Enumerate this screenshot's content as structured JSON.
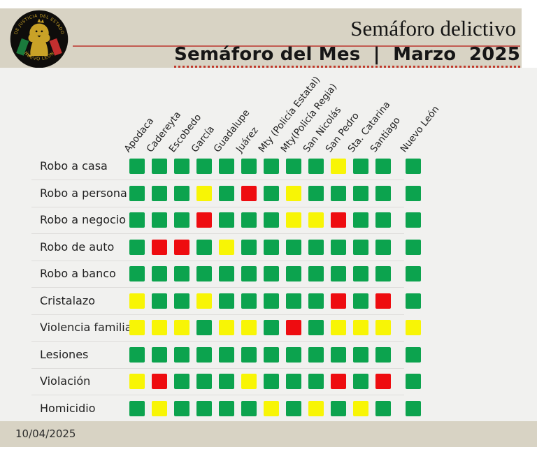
{
  "header": {
    "title": "Semáforo delictivo",
    "subtitle": "Semáforo del Mes  |  Marzo  2025",
    "logo": {
      "arc_top": "DE JUSTICIA DEL ESTADO",
      "arc_bottom": "NUEVO LEÓN"
    }
  },
  "footer": {
    "date": "10/04/2025"
  },
  "colors": {
    "green": "#0ca34e",
    "yellow": "#f8f505",
    "red": "#ee0c10",
    "band": "#d8d3c4",
    "accent_line": "#c25b52"
  },
  "chart_data": {
    "type": "heatmap",
    "title": "Semáforo del Mes | Marzo 2025",
    "value_legend": [
      "green",
      "yellow",
      "red"
    ],
    "columns": [
      "Apodaca",
      "Cadereyta",
      "Escobedo",
      "García",
      "Guadalupe",
      "Juárez",
      "Mty (Policía Estatal)",
      "Mty(Policía Regia)",
      "San Nicolás",
      "San Pedro",
      "Sta. Catarina",
      "Santiago",
      "Nuevo León"
    ],
    "rows": [
      {
        "label": "Robo a casa",
        "values": [
          "green",
          "green",
          "green",
          "green",
          "green",
          "green",
          "green",
          "green",
          "green",
          "yellow",
          "green",
          "green",
          "green"
        ]
      },
      {
        "label": "Robo a persona",
        "values": [
          "green",
          "green",
          "green",
          "yellow",
          "green",
          "red",
          "green",
          "yellow",
          "green",
          "green",
          "green",
          "green",
          "green"
        ]
      },
      {
        "label": "Robo a negocio",
        "values": [
          "green",
          "green",
          "green",
          "red",
          "green",
          "green",
          "green",
          "yellow",
          "yellow",
          "red",
          "green",
          "green",
          "green"
        ]
      },
      {
        "label": "Robo de auto",
        "values": [
          "green",
          "red",
          "red",
          "green",
          "yellow",
          "green",
          "green",
          "green",
          "green",
          "green",
          "green",
          "green",
          "green"
        ]
      },
      {
        "label": "Robo a banco",
        "values": [
          "green",
          "green",
          "green",
          "green",
          "green",
          "green",
          "green",
          "green",
          "green",
          "green",
          "green",
          "green",
          "green"
        ]
      },
      {
        "label": "Cristalazo",
        "values": [
          "yellow",
          "green",
          "green",
          "yellow",
          "green",
          "green",
          "green",
          "green",
          "green",
          "red",
          "green",
          "red",
          "green"
        ]
      },
      {
        "label": "Violencia familiar",
        "values": [
          "yellow",
          "yellow",
          "yellow",
          "green",
          "yellow",
          "yellow",
          "green",
          "red",
          "green",
          "yellow",
          "yellow",
          "yellow",
          "yellow"
        ]
      },
      {
        "label": "Lesiones",
        "values": [
          "green",
          "green",
          "green",
          "green",
          "green",
          "green",
          "green",
          "green",
          "green",
          "green",
          "green",
          "green",
          "green"
        ]
      },
      {
        "label": "Violación",
        "values": [
          "yellow",
          "red",
          "green",
          "green",
          "green",
          "yellow",
          "green",
          "green",
          "green",
          "red",
          "green",
          "red",
          "green"
        ]
      },
      {
        "label": "Homicidio",
        "values": [
          "green",
          "yellow",
          "green",
          "green",
          "green",
          "green",
          "yellow",
          "green",
          "yellow",
          "green",
          "yellow",
          "green",
          "green"
        ]
      }
    ]
  }
}
